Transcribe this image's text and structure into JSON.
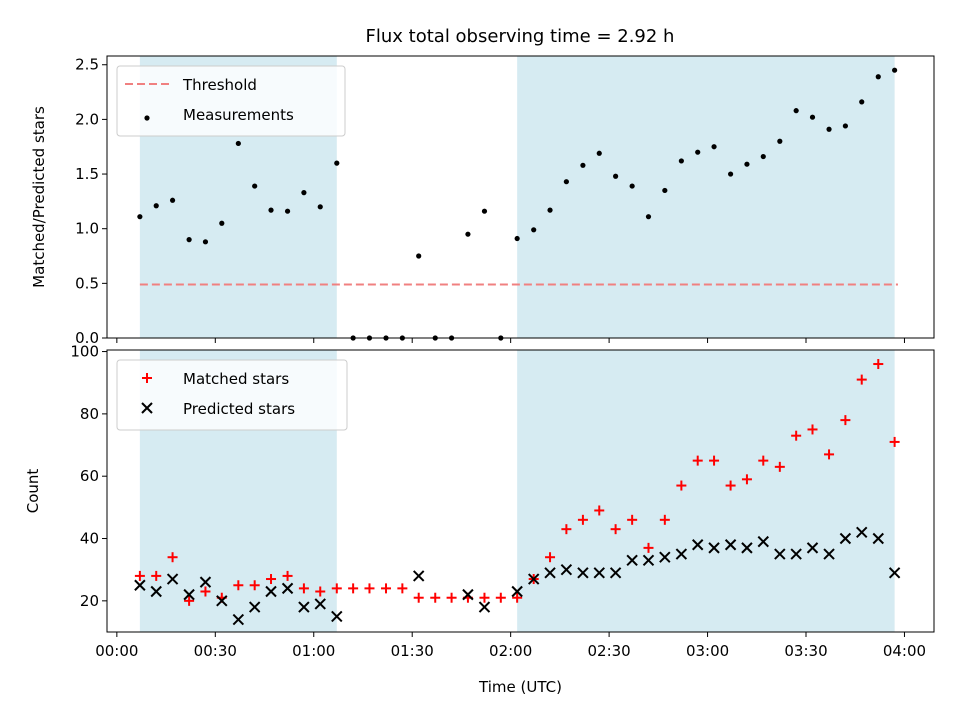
{
  "title": "Flux total observing time = 2.92 h",
  "chart_data": [
    {
      "type": "scatter",
      "ylabel": "Matched/Predicted stars",
      "xlim": [
        -0.05,
        4.15
      ],
      "ylim": [
        0,
        2.58
      ],
      "yticks": [
        "0.0",
        "0.5",
        "1.0",
        "1.5",
        "2.0",
        "2.5"
      ],
      "threshold": {
        "name": "Threshold",
        "value": 0.49,
        "x": [
          0.117,
          3.967
        ],
        "color": "#f08080"
      },
      "series": [
        {
          "name": "Measurements",
          "color": "#000000",
          "x": [
            0.117,
            0.2,
            0.283,
            0.367,
            0.45,
            0.533,
            0.617,
            0.7,
            0.783,
            0.867,
            0.95,
            1.033,
            1.117,
            1.2,
            1.283,
            1.367,
            1.45,
            1.533,
            1.617,
            1.7,
            1.783,
            1.867,
            1.95,
            2.033,
            2.117,
            2.2,
            2.283,
            2.367,
            2.45,
            2.533,
            2.617,
            2.7,
            2.783,
            2.867,
            2.95,
            3.033,
            3.117,
            3.2,
            3.283,
            3.367,
            3.45,
            3.533,
            3.617,
            3.7,
            3.783,
            3.867,
            3.95
          ],
          "y": [
            1.11,
            1.21,
            1.26,
            0.9,
            0.88,
            1.05,
            1.78,
            1.39,
            1.17,
            1.16,
            1.33,
            1.2,
            1.6,
            0,
            0,
            0,
            0,
            0.75,
            0,
            0,
            0.95,
            1.16,
            0,
            0.91,
            0.99,
            1.17,
            1.43,
            1.58,
            1.69,
            1.48,
            1.39,
            1.11,
            1.35,
            1.62,
            1.7,
            1.75,
            1.5,
            1.59,
            1.66,
            1.8,
            2.08,
            2.02,
            1.91,
            1.94,
            2.16,
            2.39,
            2.45
          ]
        }
      ],
      "shaded_regions": [
        [
          0.117,
          1.117
        ],
        [
          2.033,
          3.95
        ]
      ],
      "shade_color": "#add8e6"
    },
    {
      "type": "scatter",
      "xlabel": "Time (UTC)",
      "ylabel": "Count",
      "xlim": [
        -0.05,
        4.15
      ],
      "ylim": [
        10,
        100.5
      ],
      "yticks": [
        "20",
        "40",
        "60",
        "80",
        "100"
      ],
      "xticks": [
        {
          "x": 0,
          "label": "00:00"
        },
        {
          "x": 0.5,
          "label": "00:30"
        },
        {
          "x": 1,
          "label": "01:00"
        },
        {
          "x": 1.5,
          "label": "01:30"
        },
        {
          "x": 2,
          "label": "02:00"
        },
        {
          "x": 2.5,
          "label": "02:30"
        },
        {
          "x": 3,
          "label": "03:00"
        },
        {
          "x": 3.5,
          "label": "03:30"
        },
        {
          "x": 4,
          "label": "04:00"
        }
      ],
      "series": [
        {
          "name": "Matched stars",
          "marker": "plus",
          "color": "#ff0000",
          "x": [
            0.117,
            0.2,
            0.283,
            0.367,
            0.45,
            0.533,
            0.617,
            0.7,
            0.783,
            0.867,
            0.95,
            1.033,
            1.117,
            1.2,
            1.283,
            1.367,
            1.45,
            1.533,
            1.617,
            1.7,
            1.783,
            1.867,
            1.95,
            2.033,
            2.117,
            2.2,
            2.283,
            2.367,
            2.45,
            2.533,
            2.617,
            2.7,
            2.783,
            2.867,
            2.95,
            3.033,
            3.117,
            3.2,
            3.283,
            3.367,
            3.45,
            3.533,
            3.617,
            3.7,
            3.783,
            3.867,
            3.95
          ],
          "y": [
            28,
            28,
            34,
            20,
            23,
            21,
            25,
            25,
            27,
            28,
            24,
            23,
            24,
            24,
            24,
            24,
            24,
            21,
            21,
            21,
            21,
            21,
            21,
            21,
            27,
            34,
            43,
            46,
            49,
            43,
            46,
            37,
            46,
            57,
            65,
            65,
            57,
            59,
            65,
            63,
            73,
            75,
            67,
            78,
            91,
            96,
            71
          ]
        },
        {
          "name": "Predicted stars",
          "marker": "x",
          "color": "#000000",
          "x": [
            0.117,
            0.2,
            0.283,
            0.367,
            0.45,
            0.533,
            0.617,
            0.7,
            0.783,
            0.867,
            0.95,
            1.033,
            1.117,
            1.533,
            1.783,
            1.867,
            2.033,
            2.117,
            2.2,
            2.283,
            2.367,
            2.45,
            2.533,
            2.617,
            2.7,
            2.783,
            2.867,
            2.95,
            3.033,
            3.117,
            3.2,
            3.283,
            3.367,
            3.45,
            3.533,
            3.617,
            3.7,
            3.783,
            3.867,
            3.95
          ],
          "y": [
            25,
            23,
            27,
            22,
            26,
            20,
            14,
            18,
            23,
            24,
            18,
            19,
            15,
            28,
            22,
            18,
            23,
            27,
            29,
            30,
            29,
            29,
            29,
            33,
            33,
            34,
            35,
            38,
            37,
            38,
            37,
            39,
            35,
            35,
            37,
            35,
            40,
            42,
            40,
            29
          ]
        }
      ],
      "shaded_regions": [
        [
          0.117,
          1.117
        ],
        [
          2.033,
          3.95
        ]
      ],
      "shade_color": "#add8e6"
    }
  ]
}
